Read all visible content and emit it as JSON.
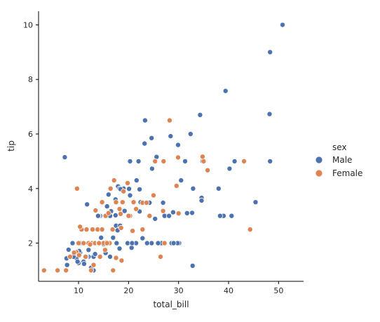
{
  "chart_data": {
    "type": "scatter",
    "xlabel": "total_bill",
    "ylabel": "tip",
    "xlim": [
      2,
      55
    ],
    "ylim": [
      0.6,
      10.5
    ],
    "xticks": [
      10,
      20,
      30,
      40,
      50
    ],
    "yticks": [
      2,
      4,
      6,
      8,
      10
    ],
    "grid": false,
    "legend": {
      "title": "sex",
      "placement": "right",
      "entries": [
        "Male",
        "Female"
      ]
    },
    "series": [
      {
        "name": "Male",
        "color": "#4c72b0",
        "points": [
          [
            50.8,
            10.0
          ],
          [
            48.3,
            9.0
          ],
          [
            39.4,
            7.58
          ],
          [
            48.2,
            6.73
          ],
          [
            34.3,
            6.7
          ],
          [
            23.3,
            6.5
          ],
          [
            32.4,
            6.0
          ],
          [
            28.4,
            5.92
          ],
          [
            24.6,
            5.85
          ],
          [
            29.9,
            5.6
          ],
          [
            23.2,
            5.65
          ],
          [
            25.6,
            5.16
          ],
          [
            7.25,
            5.15
          ],
          [
            34.8,
            5.0
          ],
          [
            40.2,
            4.73
          ],
          [
            41.2,
            5.0
          ],
          [
            48.3,
            5.0
          ],
          [
            31.3,
            5.0
          ],
          [
            24.7,
            4.73
          ],
          [
            22.0,
            5.0
          ],
          [
            20.3,
            5.0
          ],
          [
            30.5,
            4.3
          ],
          [
            21.6,
            4.3
          ],
          [
            32.9,
            4.0
          ],
          [
            38.0,
            4.0
          ],
          [
            19.0,
            4.0
          ],
          [
            17.9,
            4.08
          ],
          [
            18.2,
            4.0
          ],
          [
            22.2,
            3.97
          ],
          [
            18.4,
            3.98
          ],
          [
            20.1,
            3.99
          ],
          [
            16.0,
            3.78
          ],
          [
            17.4,
            3.6
          ],
          [
            20.3,
            3.75
          ],
          [
            26.9,
            3.48
          ],
          [
            22.4,
            3.5
          ],
          [
            11.7,
            3.42
          ],
          [
            15.7,
            3.35
          ],
          [
            24.2,
            3.48
          ],
          [
            34.6,
            3.66
          ],
          [
            34.6,
            3.56
          ],
          [
            45.4,
            3.5
          ],
          [
            19.2,
            3.18
          ],
          [
            13.4,
            3.2
          ],
          [
            14.3,
            3.0
          ],
          [
            17.4,
            3.02
          ],
          [
            16.3,
            3.0
          ],
          [
            27.2,
            3.0
          ],
          [
            28.1,
            3.0
          ],
          [
            39.0,
            3.0
          ],
          [
            38.3,
            3.0
          ],
          [
            40.6,
            3.0
          ],
          [
            24.3,
            3.0
          ],
          [
            20.3,
            3.02
          ],
          [
            25.3,
            2.89
          ],
          [
            28.9,
            3.13
          ],
          [
            31.7,
            3.1
          ],
          [
            32.7,
            3.11
          ],
          [
            22.2,
            3.16
          ],
          [
            16.5,
            3.17
          ],
          [
            14.0,
            3.0
          ],
          [
            17.5,
            2.64
          ],
          [
            17.8,
            2.47
          ],
          [
            18.3,
            2.64
          ],
          [
            13.8,
            2.0
          ],
          [
            15.0,
            1.96
          ],
          [
            20.6,
            1.83
          ],
          [
            15.4,
            1.64
          ],
          [
            10.3,
            1.66
          ],
          [
            10.1,
            1.71
          ],
          [
            9.6,
            1.67
          ],
          [
            12.0,
            1.5
          ],
          [
            11.6,
            1.5
          ],
          [
            8.8,
            2.0
          ],
          [
            8.0,
            1.76
          ],
          [
            7.6,
            1.44
          ],
          [
            13.0,
            2.0
          ],
          [
            12.5,
            2.0
          ],
          [
            11.4,
            1.5
          ],
          [
            13.0,
            1.5
          ],
          [
            9.6,
            1.44
          ],
          [
            11.0,
            1.32
          ],
          [
            10.3,
            2.0
          ],
          [
            12.7,
            2.0
          ],
          [
            10.0,
            1.27
          ],
          [
            13.9,
            3.0
          ],
          [
            15.5,
            2.02
          ],
          [
            16.9,
            2.2
          ],
          [
            14.5,
            2.2
          ],
          [
            9.8,
            1.32
          ],
          [
            30.1,
            2.0
          ],
          [
            22.8,
            2.18
          ],
          [
            21.5,
            2.0
          ],
          [
            24.6,
            2.0
          ],
          [
            26.6,
            2.0
          ],
          [
            28.6,
            2.0
          ],
          [
            29.8,
            2.0
          ],
          [
            13.0,
            1.0
          ],
          [
            32.8,
            1.17
          ],
          [
            19.8,
            2.0
          ],
          [
            20.7,
            2.0
          ],
          [
            18.2,
            1.8
          ],
          [
            16.3,
            1.5
          ],
          [
            17.6,
            2.0
          ],
          [
            12.0,
            1.75
          ],
          [
            9.0,
            1.5
          ],
          [
            7.7,
            1.2
          ],
          [
            11.1,
            1.24
          ],
          [
            13.3,
            1.6
          ],
          [
            23.7,
            2.0
          ],
          [
            25.9,
            2.0
          ],
          [
            29.0,
            2.0
          ],
          [
            12.5,
            1.1
          ]
        ]
      },
      {
        "name": "Female",
        "color": "#dd8452",
        "points": [
          [
            44.3,
            2.5
          ],
          [
            43.1,
            5.0
          ],
          [
            35.8,
            4.67
          ],
          [
            35.0,
            5.0
          ],
          [
            34.8,
            5.17
          ],
          [
            29.9,
            5.14
          ],
          [
            28.2,
            6.5
          ],
          [
            27.0,
            5.0
          ],
          [
            25.3,
            5.0
          ],
          [
            19.8,
            4.2
          ],
          [
            17.1,
            4.3
          ],
          [
            22.8,
            3.48
          ],
          [
            25.0,
            3.75
          ],
          [
            29.6,
            4.1
          ],
          [
            23.6,
            3.48
          ],
          [
            18.8,
            3.5
          ],
          [
            18.2,
            3.25
          ],
          [
            19.0,
            3.9
          ],
          [
            16.4,
            4.0
          ],
          [
            9.7,
            4.0
          ],
          [
            14.7,
            3.5
          ],
          [
            13.4,
            3.2
          ],
          [
            21.0,
            3.5
          ],
          [
            21.5,
            3.25
          ],
          [
            20.3,
            3.0
          ],
          [
            15.4,
            3.0
          ],
          [
            16.0,
            3.1
          ],
          [
            17.5,
            3.5
          ],
          [
            18.4,
            3.07
          ],
          [
            24.2,
            3.0
          ],
          [
            30.0,
            3.09
          ],
          [
            26.9,
            3.18
          ],
          [
            10.6,
            2.5
          ],
          [
            12.8,
            2.5
          ],
          [
            13.8,
            2.5
          ],
          [
            14.7,
            2.5
          ],
          [
            16.8,
            2.5
          ],
          [
            18.5,
            2.56
          ],
          [
            20.8,
            2.45
          ],
          [
            11.6,
            2.5
          ],
          [
            10.3,
            2.6
          ],
          [
            10.0,
            2.0
          ],
          [
            12.7,
            2.0
          ],
          [
            13.3,
            2.0
          ],
          [
            14.0,
            2.0
          ],
          [
            15.0,
            2.0
          ],
          [
            16.2,
            2.0
          ],
          [
            11.0,
            2.0
          ],
          [
            12.0,
            2.0
          ],
          [
            9.6,
            1.67
          ],
          [
            15.3,
            1.75
          ],
          [
            14.3,
            1.5
          ],
          [
            11.4,
            1.5
          ],
          [
            8.3,
            1.5
          ],
          [
            10.1,
            1.56
          ],
          [
            13.0,
            1.2
          ],
          [
            16.9,
            1.0
          ],
          [
            7.5,
            1.0
          ],
          [
            5.8,
            1.0
          ],
          [
            3.1,
            1.0
          ],
          [
            12.5,
            1.0
          ],
          [
            26.4,
            1.5
          ],
          [
            18.6,
            1.36
          ],
          [
            17.5,
            1.46
          ],
          [
            27.2,
            2.0
          ],
          [
            22.8,
            2.5
          ],
          [
            15.7,
            2.0
          ],
          [
            9.1,
            1.65
          ],
          [
            14.1,
            2.0
          ],
          [
            12.3,
            1.95
          ],
          [
            20.0,
            3.0
          ]
        ]
      }
    ]
  }
}
